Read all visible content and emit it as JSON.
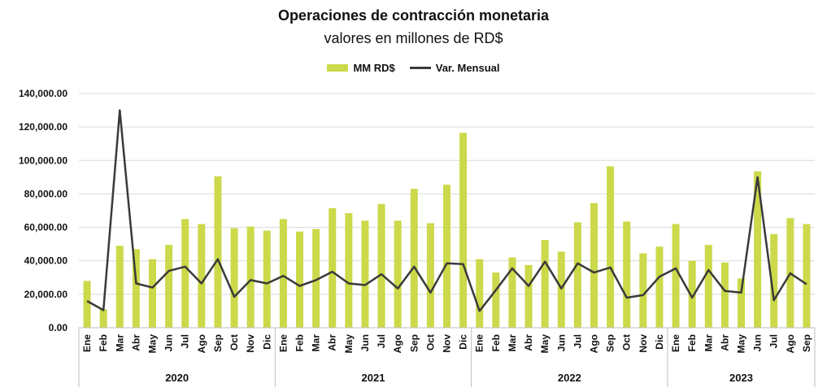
{
  "chart_data": {
    "type": "bar",
    "title": "Operaciones de contracción monetaria",
    "subtitle": "valores en millones de RD$",
    "legend": {
      "placement": "top-center"
    },
    "ylim": [
      0,
      140000
    ],
    "yticks": [
      "0.00",
      "20,000.00",
      "40,000.00",
      "60,000.00",
      "80,000.00",
      "100,000.00",
      "120,000.00",
      "140,000.00"
    ],
    "ytick_values": [
      0,
      20000,
      40000,
      60000,
      80000,
      100000,
      120000,
      140000
    ],
    "grid": true,
    "colors": {
      "bar": "#cbd94a",
      "line": "#3a3a3a",
      "grid": "#d9d9d9",
      "axis": "#bfbfbf"
    },
    "years": [
      {
        "label": "2020",
        "months": 12
      },
      {
        "label": "2021",
        "months": 12
      },
      {
        "label": "2022",
        "months": 12
      },
      {
        "label": "2023",
        "months": 9
      }
    ],
    "categories": [
      "Ene",
      "Feb",
      "Mar",
      "Abr",
      "May",
      "Jun",
      "Jul",
      "Ago",
      "Sep",
      "Oct",
      "Nov",
      "Dic",
      "Ene",
      "Feb",
      "Mar",
      "Abr",
      "May",
      "Jun",
      "Jul",
      "Ago",
      "Sep",
      "Oct",
      "Nov",
      "Dic",
      "Ene",
      "Feb",
      "Mar",
      "Abr",
      "May",
      "Jun",
      "Jul",
      "Ago",
      "Sep",
      "Oct",
      "Nov",
      "Dic",
      "Ene",
      "Feb",
      "Mar",
      "Abr",
      "May",
      "Jun",
      "Jul",
      "Ago",
      "Sep"
    ],
    "series": [
      {
        "name": "MM RD$",
        "type": "bar",
        "values": [
          28000,
          11000,
          49000,
          47000,
          41000,
          49500,
          65000,
          62000,
          90500,
          59500,
          60500,
          58000,
          65000,
          57500,
          59000,
          71500,
          68500,
          64000,
          74000,
          64000,
          83000,
          62500,
          85500,
          116500,
          41000,
          33000,
          42000,
          37500,
          52500,
          45500,
          63000,
          74500,
          96500,
          63500,
          44500,
          48500,
          62000,
          40000,
          49500,
          39000,
          29500,
          93500,
          56000,
          65500,
          62000
        ]
      },
      {
        "name": "Var. Mensual",
        "type": "line",
        "values": [
          16000,
          10500,
          130000,
          26500,
          24000,
          34000,
          36500,
          26500,
          41000,
          18500,
          28500,
          26500,
          31000,
          25000,
          28500,
          33500,
          26500,
          25500,
          32000,
          23500,
          36500,
          21000,
          38500,
          38000,
          10000,
          22500,
          35500,
          25000,
          39500,
          23500,
          38500,
          33000,
          36000,
          18000,
          19500,
          30500,
          35500,
          18000,
          34500,
          22000,
          21000,
          90000,
          16500,
          32500,
          26000
        ]
      }
    ]
  }
}
